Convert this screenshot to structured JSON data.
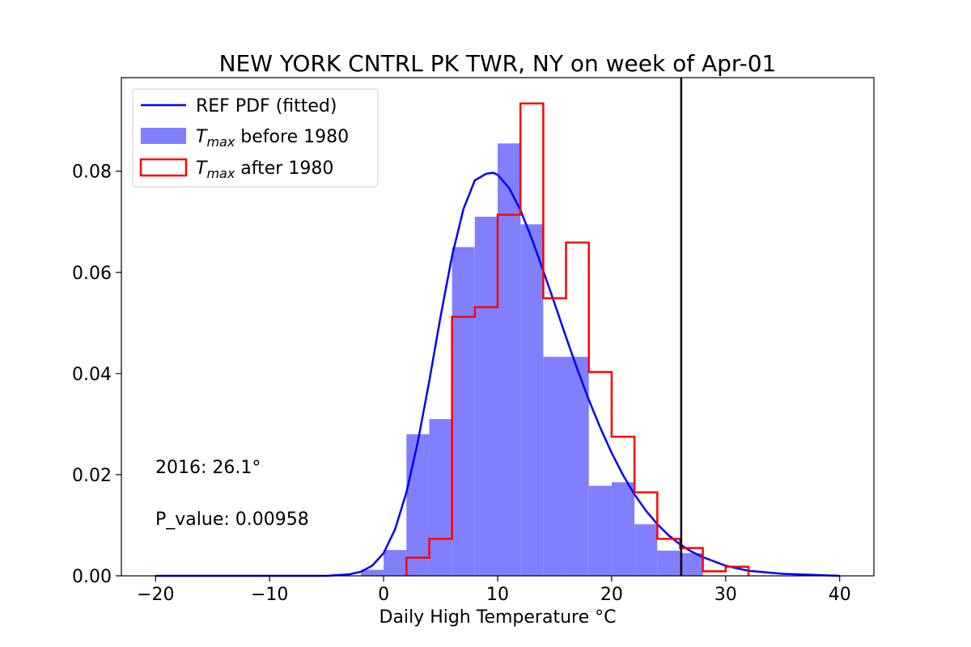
{
  "chart_data": {
    "type": "bar",
    "title": "NEW YORK CNTRL PK TWR, NY on week of Apr-01",
    "xlabel": "Daily High Temperature °C",
    "ylabel": "",
    "xlim": [
      -23,
      43
    ],
    "ylim": [
      0,
      0.0985
    ],
    "x_ticks": [
      -20,
      -10,
      0,
      10,
      20,
      30,
      40
    ],
    "x_tick_labels": [
      "−20",
      "−10",
      "0",
      "10",
      "20",
      "30",
      "40"
    ],
    "y_ticks": [
      0.0,
      0.02,
      0.04,
      0.06,
      0.08
    ],
    "y_tick_labels": [
      "0.00",
      "0.02",
      "0.04",
      "0.06",
      "0.08"
    ],
    "grid": false,
    "legend_position": "top-left",
    "bin_edges": [
      -2,
      0,
      2,
      4,
      6,
      8,
      10,
      12,
      14,
      16,
      18,
      20,
      22,
      24,
      26,
      28,
      30,
      32
    ],
    "series": [
      {
        "name_parts": [
          "T",
          "max",
          " before 1980"
        ],
        "style": "filled-histogram",
        "color": "#8080ff",
        "values": [
          0.0012,
          0.0051,
          0.028,
          0.031,
          0.065,
          0.071,
          0.0855,
          0.0695,
          0.0433,
          0.0433,
          0.0178,
          0.0185,
          0.0102,
          0.005,
          0.0045,
          0.0,
          0.0
        ]
      },
      {
        "name_parts": [
          "T",
          "max",
          " after 1980"
        ],
        "style": "step-histogram",
        "color": "#ff0000",
        "values": [
          0.0,
          0.0,
          0.0036,
          0.0073,
          0.0512,
          0.0531,
          0.0714,
          0.0934,
          0.0549,
          0.0659,
          0.0403,
          0.0275,
          0.0165,
          0.0073,
          0.0055,
          0.0009,
          0.0018
        ]
      }
    ],
    "pdf_curve": {
      "name": "REF PDF (fitted)",
      "color": "#0000ff",
      "x": [
        -20,
        -10,
        -5,
        -3,
        -2,
        -1,
        0,
        1,
        2,
        3,
        4,
        5,
        6,
        7,
        8,
        9,
        9.6,
        10,
        11,
        12,
        13,
        14,
        15,
        16,
        17,
        18,
        19,
        20,
        21,
        22,
        23,
        24,
        25,
        26,
        27,
        28,
        30,
        32,
        35,
        40
      ],
      "y": [
        0.0,
        0.0,
        0.0,
        0.0003,
        0.0008,
        0.002,
        0.0045,
        0.0092,
        0.0165,
        0.0265,
        0.0385,
        0.0513,
        0.0632,
        0.0725,
        0.0782,
        0.0795,
        0.0797,
        0.0793,
        0.0767,
        0.0723,
        0.0666,
        0.0603,
        0.0538,
        0.0472,
        0.0408,
        0.0348,
        0.0293,
        0.0243,
        0.0199,
        0.0161,
        0.0129,
        0.0102,
        0.008,
        0.0062,
        0.0048,
        0.0037,
        0.002,
        0.001,
        0.0004,
        0.0
      ]
    },
    "vertical_line": {
      "x": 26.1,
      "color": "#000000"
    },
    "annotations": [
      "2016: 26.1°",
      "P_value: 0.00958"
    ]
  }
}
